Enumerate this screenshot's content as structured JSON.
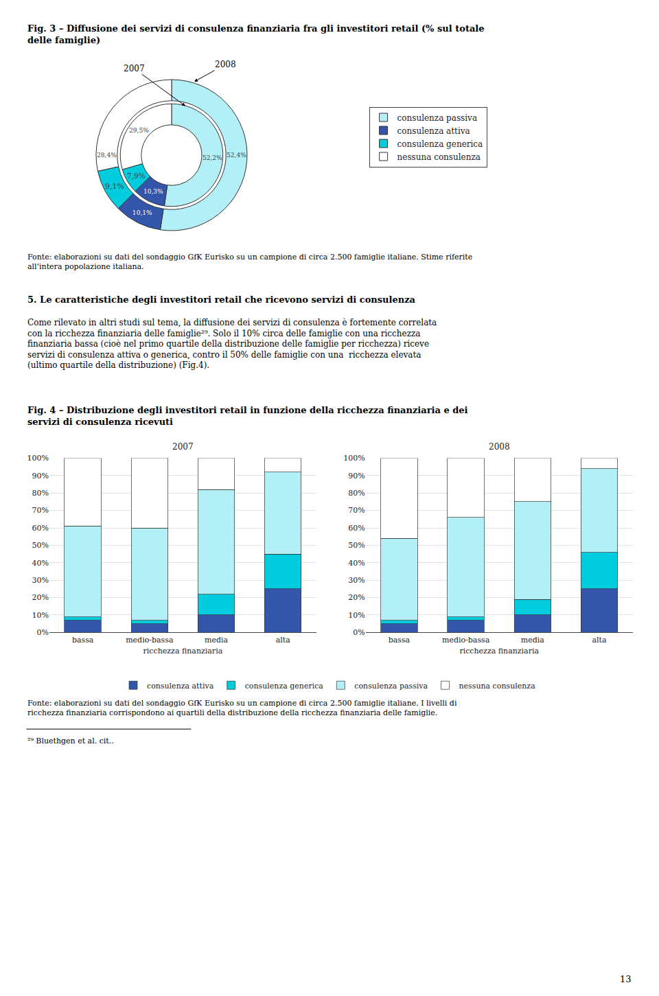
{
  "chart_data": [
    {
      "type": "pie",
      "title": "Fig. 3 – Diffusione dei servizi di consulenza finanziaria fra gli investitori retail (% sul totale\ndelle famiglie)",
      "categories": [
        "consulenza passiva",
        "consulenza attiva",
        "consulenza generica",
        "nessuna consulenza"
      ],
      "colors": [
        "#b2eff7",
        "#3355aa",
        "#00ccdd",
        "#ffffff"
      ],
      "series": [
        {
          "name": "2008",
          "values": [
            52.4,
            10.1,
            9.1,
            28.4
          ],
          "value_labels": [
            "52,4%",
            "10,1%",
            "9,1%",
            "28,4%"
          ]
        },
        {
          "name": "2007",
          "values": [
            52.2,
            10.3,
            7.9,
            29.5
          ],
          "value_labels": [
            "52,2%",
            "10,3%",
            "7,9%",
            "29,5%"
          ]
        }
      ],
      "data_labels": true,
      "legend": "right",
      "annotations": [
        "Fonte: elaborazioni su dati del sondaggio GfK Eurisko su un campione di circa 2.500 famiglie italiane. Stime riferite\nall’intera popolazione italiana.",
        "5. Le caratteristiche degli investitori retail che ricevono servizi di consulenza",
        "Come rilevato in altri studi sul tema, la diffusione dei servizi di consulenza è fortemente correlata\ncon la ricchezza finanziaria delle famiglie²⁹. Solo il 10% circa delle famiglie con una ricchezza\nfinanziaria bassa (cioè nel primo quartile della distribuzione delle famiglie per ricchezza) riceve\nservizi di consulenza attiva o generica, contro il 50% delle famiglie con una  ricchezza elevata\n(ultimo quartile della distribuzione) (Fig.4)."
      ]
    },
    {
      "type": "bar",
      "title": "2007",
      "stacked": true,
      "categories": [
        "bassa",
        "medio-bassa",
        "media",
        "alta"
      ],
      "xlabel": "ricchezza finanziaria",
      "ylim": [
        0,
        1.0
      ],
      "yticks": [
        {
          "value": 0,
          "label": "0%"
        },
        {
          "value": 0.1,
          "label": "10%"
        },
        {
          "value": 0.2,
          "label": "20%"
        },
        {
          "value": 0.3,
          "label": "30%"
        },
        {
          "value": 0.4,
          "label": "40%"
        },
        {
          "value": 0.5,
          "label": "50%"
        },
        {
          "value": 0.6,
          "label": "60%"
        },
        {
          "value": 0.7,
          "label": "70%"
        },
        {
          "value": 0.8,
          "label": "80%"
        },
        {
          "value": 0.9,
          "label": "90%"
        },
        {
          "value": 1.0,
          "label": "100%"
        }
      ],
      "grid": true,
      "legend": "bottom",
      "series": [
        {
          "name": "consulenza attiva",
          "color": "#3355aa",
          "values": [
            0.07,
            0.05,
            0.1,
            0.25
          ]
        },
        {
          "name": "consulenza generica",
          "color": "#00ccdd",
          "values": [
            0.02,
            0.02,
            0.12,
            0.2
          ]
        },
        {
          "name": "consulenza passiva",
          "color": "#b2eff7",
          "values": [
            0.52,
            0.53,
            0.6,
            0.47
          ]
        },
        {
          "name": "nessuna consulenza",
          "color": "#ffffff",
          "values": [
            0.39,
            0.4,
            0.18,
            0.08
          ]
        }
      ],
      "annotations": [
        "Fig. 4 – Distribuzione degli investitori retail in funzione della ricchezza finanziaria e dei\nservizi di consulenza ricevuti"
      ]
    },
    {
      "type": "bar",
      "title": "2008",
      "stacked": true,
      "categories": [
        "bassa",
        "medio-bassa",
        "media",
        "alta"
      ],
      "xlabel": "ricchezza finanziaria",
      "ylim": [
        0,
        1.0
      ],
      "yticks": [
        {
          "value": 0,
          "label": "0%"
        },
        {
          "value": 0.1,
          "label": "10%"
        },
        {
          "value": 0.2,
          "label": "20%"
        },
        {
          "value": 0.3,
          "label": "30%"
        },
        {
          "value": 0.4,
          "label": "40%"
        },
        {
          "value": 0.5,
          "label": "50%"
        },
        {
          "value": 0.6,
          "label": "60%"
        },
        {
          "value": 0.7,
          "label": "70%"
        },
        {
          "value": 0.8,
          "label": "80%"
        },
        {
          "value": 0.9,
          "label": "90%"
        },
        {
          "value": 1.0,
          "label": "100%"
        }
      ],
      "grid": true,
      "legend": "bottom",
      "series": [
        {
          "name": "consulenza attiva",
          "color": "#3355aa",
          "values": [
            0.05,
            0.07,
            0.1,
            0.25
          ]
        },
        {
          "name": "consulenza generica",
          "color": "#00ccdd",
          "values": [
            0.02,
            0.02,
            0.09,
            0.21
          ]
        },
        {
          "name": "consulenza passiva",
          "color": "#b2eff7",
          "values": [
            0.47,
            0.57,
            0.56,
            0.48
          ]
        },
        {
          "name": "nessuna consulenza",
          "color": "#ffffff",
          "values": [
            0.46,
            0.34,
            0.25,
            0.06
          ]
        }
      ],
      "annotations": [
        "Fonte: elaborazioni su dati del sondaggio GfK Eurisko su un campione di circa 2.500 famiglie italiane. I livelli di\nricchezza finanziaria corrispondono ai quartili della distribuzione della ricchezza finanziaria delle famiglie.",
        "²⁹ Bluethgen et al. cit..",
        "13"
      ]
    }
  ]
}
